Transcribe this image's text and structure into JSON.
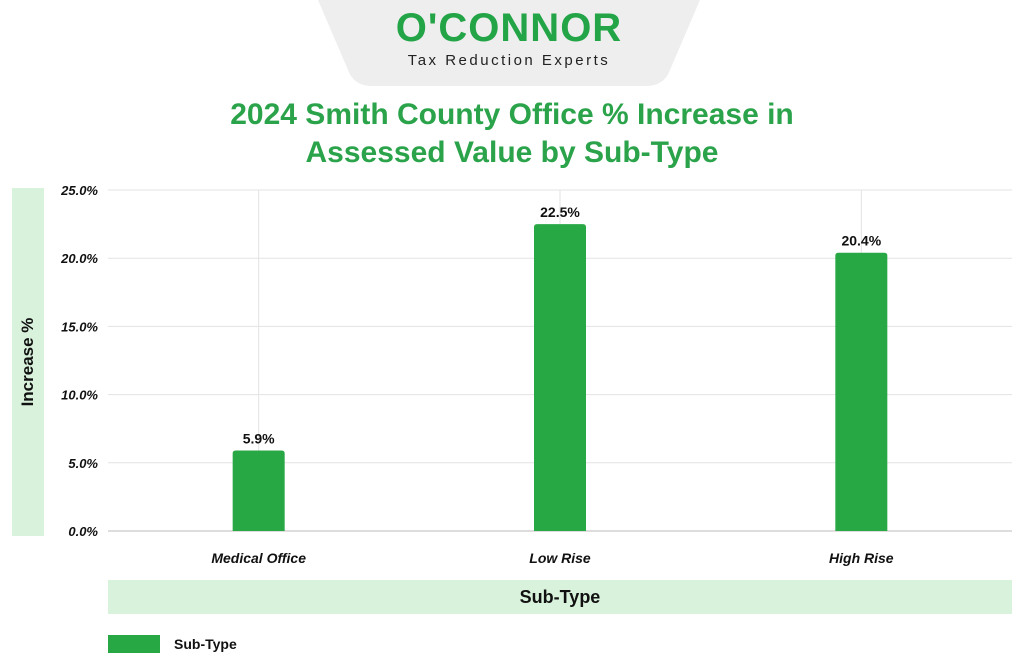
{
  "logo": {
    "brand": "O'CONNOR",
    "tagline": "Tax Reduction Experts",
    "tab_color": "#eeeeee"
  },
  "colors": {
    "title": "#2aa34a",
    "bar": "#28a745",
    "label_band": "#d9f2dc",
    "grid": "#e3e3e3"
  },
  "chart_data": {
    "type": "bar",
    "title_lines": [
      "2024 Smith County Office % Increase in",
      "Assessed Value by Sub-Type"
    ],
    "xlabel": "Sub-Type",
    "ylabel": "Increase %",
    "categories": [
      "Medical Office",
      "Low Rise",
      "High Rise"
    ],
    "series": [
      {
        "name": "Sub-Type",
        "values": [
          5.9,
          22.5,
          20.4
        ],
        "value_labels": [
          "5.9%",
          "22.5%",
          "20.4%"
        ]
      }
    ],
    "ylim": [
      0,
      25
    ],
    "yticks": [
      0,
      5,
      10,
      15,
      20,
      25
    ],
    "ytick_labels": [
      "0.0%",
      "5.0%",
      "10.0%",
      "15.0%",
      "20.0%",
      "25.0%"
    ],
    "grid": true,
    "legend": "bottom-left"
  }
}
